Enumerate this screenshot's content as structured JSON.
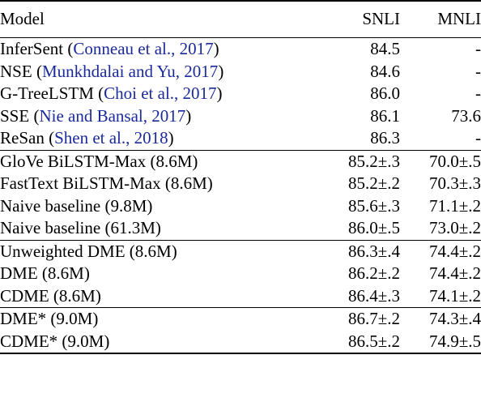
{
  "header": {
    "model": "Model",
    "snli": "SNLI",
    "mnli": "MNLI"
  },
  "groups": [
    {
      "rows": [
        {
          "name": "InferSent",
          "cite": "Conneau et al., 2017",
          "snli": "84.5",
          "mnli": "-"
        },
        {
          "name": "NSE",
          "cite": "Munkhdalai and Yu, 2017",
          "snli": "84.6",
          "mnli": "-"
        },
        {
          "name": "G-TreeLSTM",
          "cite": "Choi et al., 2017",
          "snli": "86.0",
          "mnli": "-"
        },
        {
          "name": "SSE",
          "cite": "Nie and Bansal, 2017",
          "snli": "86.1",
          "mnli": "73.6"
        },
        {
          "name": "ReSan",
          "cite": "Shen et al., 2018",
          "snli": "86.3",
          "mnli": "-"
        }
      ]
    },
    {
      "rows": [
        {
          "name": "GloVe BiLSTM-Max (8.6M)",
          "snli": "85.2±.3",
          "mnli": "70.0±.5"
        },
        {
          "name": "FastText BiLSTM-Max (8.6M)",
          "snli": "85.2±.2",
          "mnli": "70.3±.3"
        },
        {
          "name": "Naive baseline (9.8M)",
          "snli": "85.6±.3",
          "mnli": "71.1±.2"
        },
        {
          "name": "Naive baseline (61.3M)",
          "snli": "86.0±.5",
          "mnli": "73.0±.2"
        }
      ]
    },
    {
      "rows": [
        {
          "name": "Unweighted DME (8.6M)",
          "snli": "86.3±.4",
          "mnli": "74.4±.2"
        },
        {
          "name": "DME (8.6M)",
          "snli": "86.2±.2",
          "mnli": "74.4±.2"
        },
        {
          "name": "CDME (8.6M)",
          "snli": "86.4±.3",
          "mnli": "74.1±.2"
        }
      ]
    },
    {
      "rows": [
        {
          "name": "DME* (9.0M)",
          "snli": "86.7±.2",
          "mnli": "74.3±.4"
        },
        {
          "name": "CDME* (9.0M)",
          "snli": "86.5±.2",
          "mnli": "74.9±.5"
        }
      ]
    }
  ]
}
